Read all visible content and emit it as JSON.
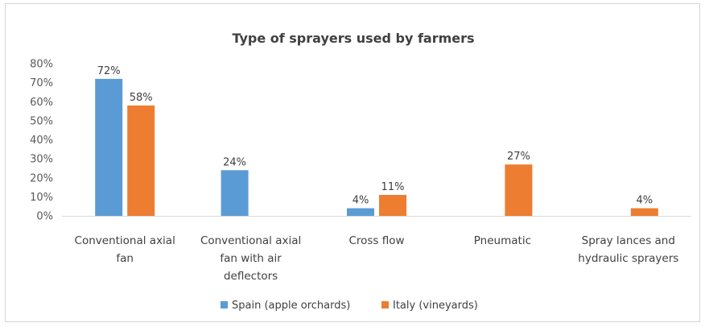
{
  "chart_data": {
    "type": "bar",
    "title": "Type of sprayers used by farmers",
    "xlabel": "",
    "ylabel": "",
    "ylim": [
      0,
      80
    ],
    "yticks": [
      0,
      10,
      20,
      30,
      40,
      50,
      60,
      70,
      80
    ],
    "ytick_suffix": "%",
    "grid": false,
    "legend_position": "bottom",
    "categories": [
      [
        "Conventional axial",
        "fan"
      ],
      [
        "Conventional axial",
        "fan with air",
        "deflectors"
      ],
      [
        "Cross flow"
      ],
      [
        "Pneumatic"
      ],
      [
        "Spray lances and",
        "hydraulic sprayers"
      ]
    ],
    "series": [
      {
        "name": "Spain (apple orchards)",
        "color": "#5b9bd5",
        "values": [
          72,
          24,
          4,
          null,
          null
        ]
      },
      {
        "name": "Italy (vineyards)",
        "color": "#ed7d31",
        "values": [
          58,
          null,
          11,
          27,
          4
        ]
      }
    ]
  }
}
